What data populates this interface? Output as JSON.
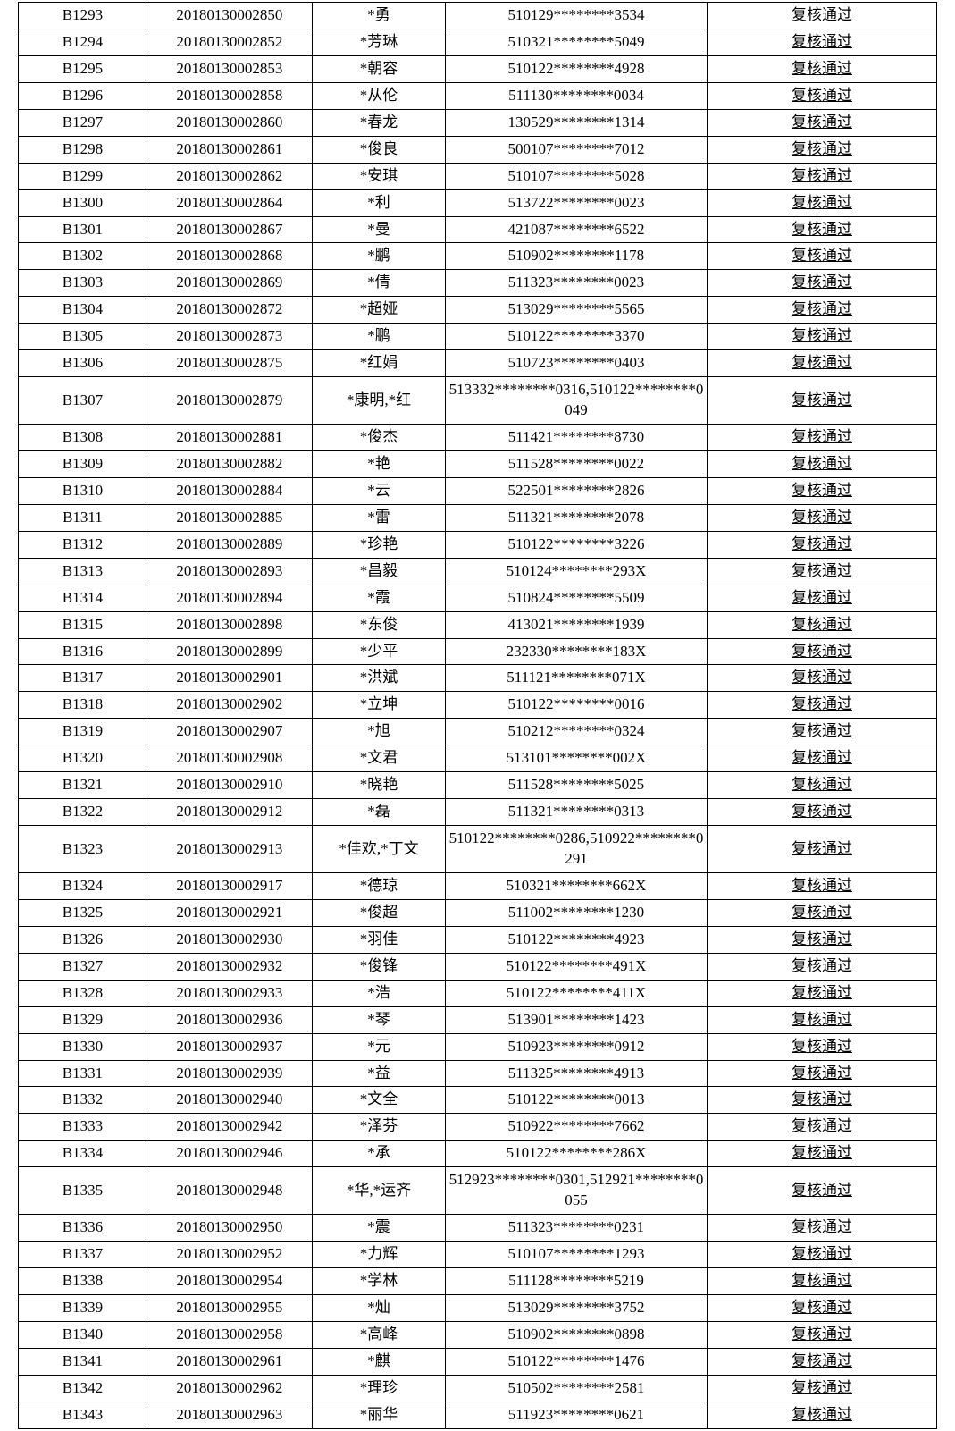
{
  "table": {
    "columns": [
      "c1",
      "c2",
      "c3",
      "c4",
      "c5"
    ],
    "columnWidths": [
      "14%",
      "18%",
      "14.5%",
      "28.5%",
      "25%"
    ],
    "borderColor": "#000000",
    "backgroundColor": "#ffffff",
    "textColor": "#000000",
    "fontSize": 17,
    "statusUnderline": true,
    "rows": [
      {
        "id": "B1293",
        "serial": "20180130002850",
        "name": "*勇",
        "idno": "510129********3534",
        "status": "复核通过"
      },
      {
        "id": "B1294",
        "serial": "20180130002852",
        "name": "*芳琳",
        "idno": "510321********5049",
        "status": "复核通过"
      },
      {
        "id": "B1295",
        "serial": "20180130002853",
        "name": "*朝容",
        "idno": "510122********4928",
        "status": "复核通过"
      },
      {
        "id": "B1296",
        "serial": "20180130002858",
        "name": "*从伦",
        "idno": "511130********0034",
        "status": "复核通过"
      },
      {
        "id": "B1297",
        "serial": "20180130002860",
        "name": "*春龙",
        "idno": "130529********1314",
        "status": "复核通过"
      },
      {
        "id": "B1298",
        "serial": "20180130002861",
        "name": "*俊良",
        "idno": "500107********7012",
        "status": "复核通过"
      },
      {
        "id": "B1299",
        "serial": "20180130002862",
        "name": "*安琪",
        "idno": "510107********5028",
        "status": "复核通过"
      },
      {
        "id": "B1300",
        "serial": "20180130002864",
        "name": "*利",
        "idno": "513722********0023",
        "status": "复核通过"
      },
      {
        "id": "B1301",
        "serial": "20180130002867",
        "name": "*曼",
        "idno": "421087********6522",
        "status": "复核通过"
      },
      {
        "id": "B1302",
        "serial": "20180130002868",
        "name": "*鹏",
        "idno": "510902********1178",
        "status": "复核通过"
      },
      {
        "id": "B1303",
        "serial": "20180130002869",
        "name": "*倩",
        "idno": "511323********0023",
        "status": "复核通过"
      },
      {
        "id": "B1304",
        "serial": "20180130002872",
        "name": "*超娅",
        "idno": "513029********5565",
        "status": "复核通过"
      },
      {
        "id": "B1305",
        "serial": "20180130002873",
        "name": "*鹏",
        "idno": "510122********3370",
        "status": "复核通过"
      },
      {
        "id": "B1306",
        "serial": "20180130002875",
        "name": "*红娟",
        "idno": "510723********0403",
        "status": "复核通过"
      },
      {
        "id": "B1307",
        "serial": "20180130002879",
        "name": "*康明,*红",
        "idno": "513332********0316,510122********0049",
        "status": "复核通过"
      },
      {
        "id": "B1308",
        "serial": "20180130002881",
        "name": "*俊杰",
        "idno": "511421********8730",
        "status": "复核通过"
      },
      {
        "id": "B1309",
        "serial": "20180130002882",
        "name": "*艳",
        "idno": "511528********0022",
        "status": "复核通过"
      },
      {
        "id": "B1310",
        "serial": "20180130002884",
        "name": "*云",
        "idno": "522501********2826",
        "status": "复核通过"
      },
      {
        "id": "B1311",
        "serial": "20180130002885",
        "name": "*雷",
        "idno": "511321********2078",
        "status": "复核通过"
      },
      {
        "id": "B1312",
        "serial": "20180130002889",
        "name": "*珍艳",
        "idno": "510122********3226",
        "status": "复核通过"
      },
      {
        "id": "B1313",
        "serial": "20180130002893",
        "name": "*昌毅",
        "idno": "510124********293X",
        "status": "复核通过"
      },
      {
        "id": "B1314",
        "serial": "20180130002894",
        "name": "*霞",
        "idno": "510824********5509",
        "status": "复核通过"
      },
      {
        "id": "B1315",
        "serial": "20180130002898",
        "name": "*东俊",
        "idno": "413021********1939",
        "status": "复核通过"
      },
      {
        "id": "B1316",
        "serial": "20180130002899",
        "name": "*少平",
        "idno": "232330********183X",
        "status": "复核通过"
      },
      {
        "id": "B1317",
        "serial": "20180130002901",
        "name": "*洪斌",
        "idno": "511121********071X",
        "status": "复核通过"
      },
      {
        "id": "B1318",
        "serial": "20180130002902",
        "name": "*立坤",
        "idno": "510122********0016",
        "status": "复核通过"
      },
      {
        "id": "B1319",
        "serial": "20180130002907",
        "name": "*旭",
        "idno": "510212********0324",
        "status": "复核通过"
      },
      {
        "id": "B1320",
        "serial": "20180130002908",
        "name": "*文君",
        "idno": "513101********002X",
        "status": "复核通过"
      },
      {
        "id": "B1321",
        "serial": "20180130002910",
        "name": "*晓艳",
        "idno": "511528********5025",
        "status": "复核通过"
      },
      {
        "id": "B1322",
        "serial": "20180130002912",
        "name": "*磊",
        "idno": "511321********0313",
        "status": "复核通过"
      },
      {
        "id": "B1323",
        "serial": "20180130002913",
        "name": "*佳欢,*丁文",
        "idno": "510122********0286,510922********0291",
        "status": "复核通过"
      },
      {
        "id": "B1324",
        "serial": "20180130002917",
        "name": "*德琼",
        "idno": "510321********662X",
        "status": "复核通过"
      },
      {
        "id": "B1325",
        "serial": "20180130002921",
        "name": "*俊超",
        "idno": "511002********1230",
        "status": "复核通过"
      },
      {
        "id": "B1326",
        "serial": "20180130002930",
        "name": "*羽佳",
        "idno": "510122********4923",
        "status": "复核通过"
      },
      {
        "id": "B1327",
        "serial": "20180130002932",
        "name": "*俊锋",
        "idno": "510122********491X",
        "status": "复核通过"
      },
      {
        "id": "B1328",
        "serial": "20180130002933",
        "name": "*浩",
        "idno": "510122********411X",
        "status": "复核通过"
      },
      {
        "id": "B1329",
        "serial": "20180130002936",
        "name": "*琴",
        "idno": "513901********1423",
        "status": "复核通过"
      },
      {
        "id": "B1330",
        "serial": "20180130002937",
        "name": "*元",
        "idno": "510923********0912",
        "status": "复核通过"
      },
      {
        "id": "B1331",
        "serial": "20180130002939",
        "name": "*益",
        "idno": "511325********4913",
        "status": "复核通过"
      },
      {
        "id": "B1332",
        "serial": "20180130002940",
        "name": "*文全",
        "idno": "510122********0013",
        "status": "复核通过"
      },
      {
        "id": "B1333",
        "serial": "20180130002942",
        "name": "*泽芬",
        "idno": "510922********7662",
        "status": "复核通过"
      },
      {
        "id": "B1334",
        "serial": "20180130002946",
        "name": "*承",
        "idno": "510122********286X",
        "status": "复核通过"
      },
      {
        "id": "B1335",
        "serial": "20180130002948",
        "name": "*华,*运齐",
        "idno": "512923********0301,512921********0055",
        "status": "复核通过"
      },
      {
        "id": "B1336",
        "serial": "20180130002950",
        "name": "*震",
        "idno": "511323********0231",
        "status": "复核通过"
      },
      {
        "id": "B1337",
        "serial": "20180130002952",
        "name": "*力辉",
        "idno": "510107********1293",
        "status": "复核通过"
      },
      {
        "id": "B1338",
        "serial": "20180130002954",
        "name": "*学林",
        "idno": "511128********5219",
        "status": "复核通过"
      },
      {
        "id": "B1339",
        "serial": "20180130002955",
        "name": "*灿",
        "idno": "513029********3752",
        "status": "复核通过"
      },
      {
        "id": "B1340",
        "serial": "20180130002958",
        "name": "*高峰",
        "idno": "510902********0898",
        "status": "复核通过"
      },
      {
        "id": "B1341",
        "serial": "20180130002961",
        "name": "*麒",
        "idno": "510122********1476",
        "status": "复核通过"
      },
      {
        "id": "B1342",
        "serial": "20180130002962",
        "name": "*理珍",
        "idno": "510502********2581",
        "status": "复核通过"
      },
      {
        "id": "B1343",
        "serial": "20180130002963",
        "name": "*丽华",
        "idno": "511923********0621",
        "status": "复核通过"
      }
    ]
  }
}
